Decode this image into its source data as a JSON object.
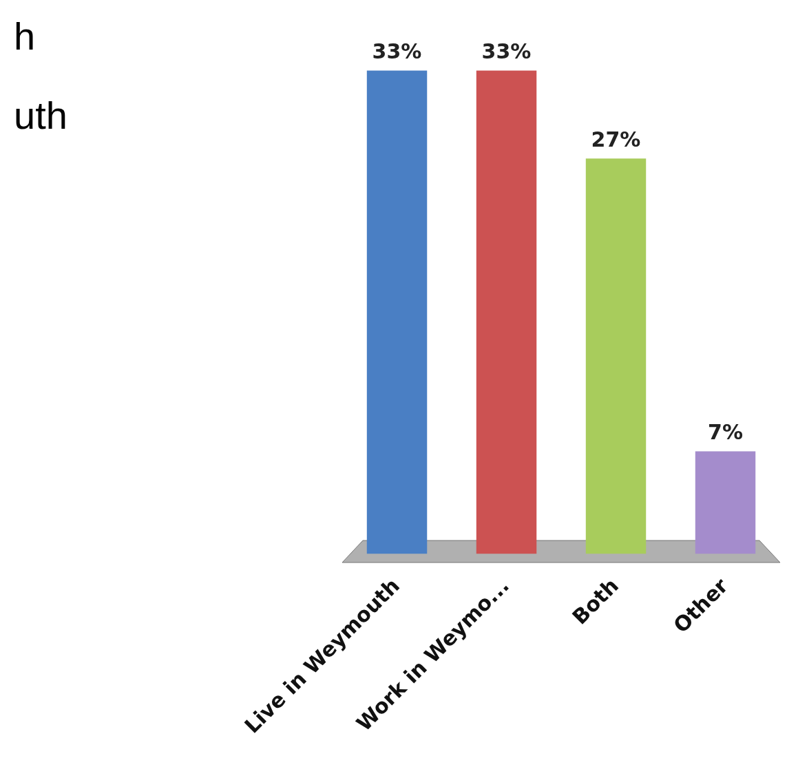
{
  "chart_data": {
    "type": "bar",
    "categories": [
      "Live in Weymouth",
      "Work in Weymo...",
      "Both",
      "Other"
    ],
    "values": [
      33,
      33,
      27,
      7
    ],
    "colors": [
      "#4a7fc4",
      "#cc5252",
      "#a8cc5c",
      "#a48ccc"
    ],
    "value_labels": [
      "33%",
      "33%",
      "27%",
      "7%"
    ],
    "grid": false,
    "legend": false,
    "tick_labels": "x",
    "annotations": [
      "h",
      "uth"
    ]
  }
}
